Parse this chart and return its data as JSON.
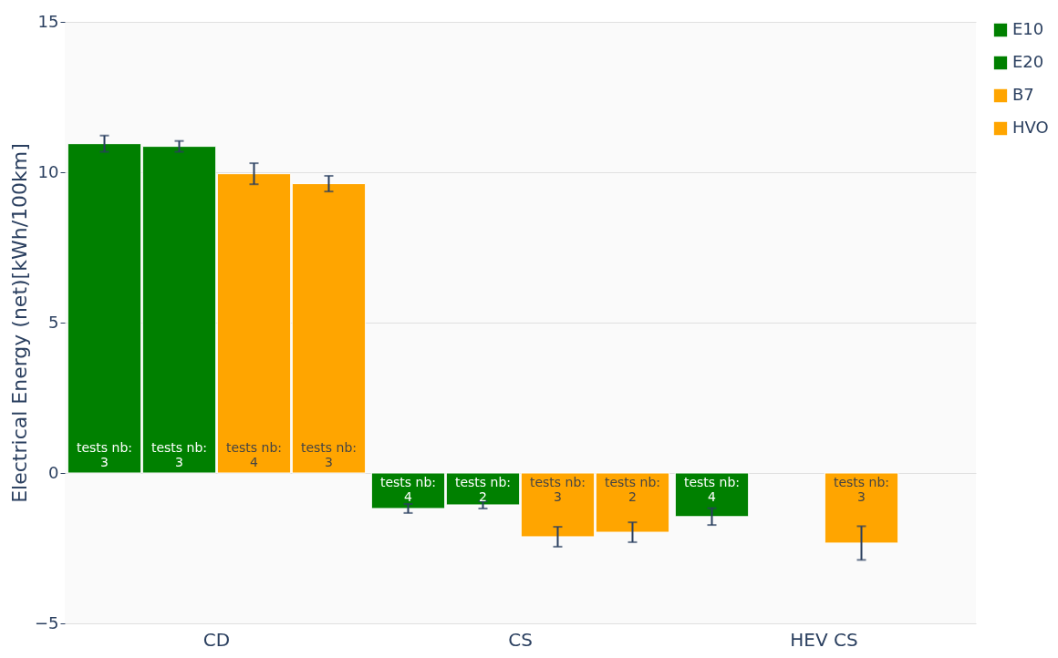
{
  "chart_data": {
    "type": "bar",
    "ylabel": "Electrical Energy (net)[kWh/100km]",
    "categories": [
      "CD",
      "CS",
      "HEV CS"
    ],
    "series": [
      {
        "name": "E10",
        "color": "#008000",
        "values": [
          10.95,
          -1.18,
          -1.45
        ],
        "errors": [
          0.27,
          0.15,
          0.28
        ]
      },
      {
        "name": "E20",
        "color": "#008000",
        "values": [
          10.86,
          -1.06,
          null
        ],
        "errors": [
          0.18,
          0.12,
          null
        ]
      },
      {
        "name": "B7",
        "color": "#ffa500",
        "values": [
          9.95,
          -2.12,
          -2.33
        ],
        "errors": [
          0.35,
          0.33,
          0.56
        ]
      },
      {
        "name": "HVO",
        "color": "#ffa500",
        "values": [
          9.62,
          -1.97,
          null
        ],
        "errors": [
          0.26,
          0.33,
          null
        ]
      }
    ],
    "annotations": [
      "tests nb:\n3",
      "tests nb:\n3",
      "tests nb:\n4",
      "tests nb:\n3",
      "tests nb:\n4",
      "tests nb:\n2",
      "tests nb:\n3",
      "tests nb:\n2",
      "tests nb:\n4",
      "tests nb:\n3"
    ],
    "ylim": [
      -5,
      15
    ],
    "yticks": [
      -5,
      0,
      5,
      10,
      15
    ],
    "grid": "y",
    "legend": "top right"
  }
}
